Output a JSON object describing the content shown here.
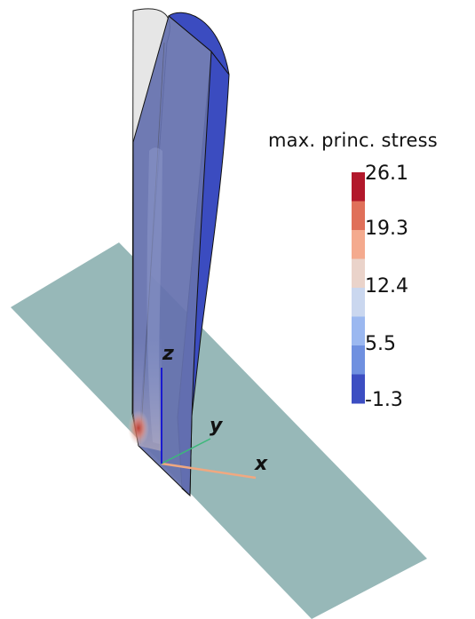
{
  "scalar_bar": {
    "title": "max. princ. stress",
    "ticks": [
      "26.1",
      "19.3",
      "12.4",
      "5.5",
      "-1.3"
    ],
    "colors": [
      "#b2182b",
      "#e0705a",
      "#f4aa8e",
      "#ead3ca",
      "#cad7ef",
      "#9bb8f0",
      "#6f90e0",
      "#3c4ec2"
    ]
  },
  "axes": {
    "x_label": "x",
    "y_label": "y",
    "z_label": "z",
    "x_color": "#f0a880",
    "y_color": "#3cb87a",
    "z_color": "#1a1ad0"
  },
  "scene": {
    "plane_color": "#97b8b8",
    "clip_plane_color": "#e6e6e6",
    "deformed_body_color": "#3b4cc0",
    "hotspot_color": "#c0392b"
  }
}
